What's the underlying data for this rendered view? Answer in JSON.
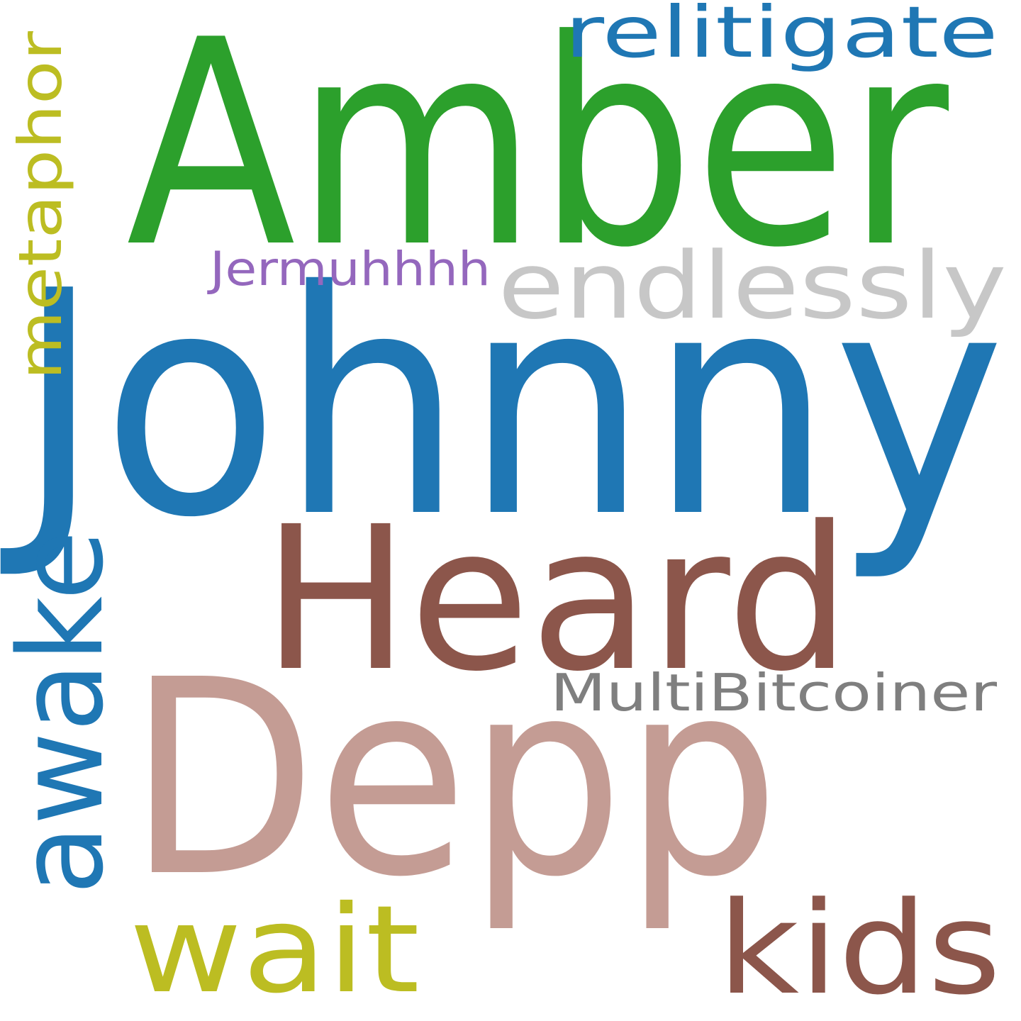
{
  "word_cloud": {
    "words": [
      {
        "text": "Johnny",
        "color": "#1f77b4"
      },
      {
        "text": "Amber",
        "color": "#2ca02c"
      },
      {
        "text": "Depp",
        "color": "#c49c94"
      },
      {
        "text": "Heard",
        "color": "#8c564b"
      },
      {
        "text": "awake",
        "color": "#1f77b4",
        "orientation": "vertical"
      },
      {
        "text": "kids",
        "color": "#8c564b"
      },
      {
        "text": "wait",
        "color": "#bcbd22"
      },
      {
        "text": "endlessly",
        "color": "#c7c7c7"
      },
      {
        "text": "relitigate",
        "color": "#1f77b4"
      },
      {
        "text": "metaphor",
        "color": "#bcbd22",
        "orientation": "vertical"
      },
      {
        "text": "MultiBitcoiner",
        "color": "#7f7f7f"
      },
      {
        "text": "Jermuhhhh",
        "color": "#9467bd"
      }
    ]
  }
}
